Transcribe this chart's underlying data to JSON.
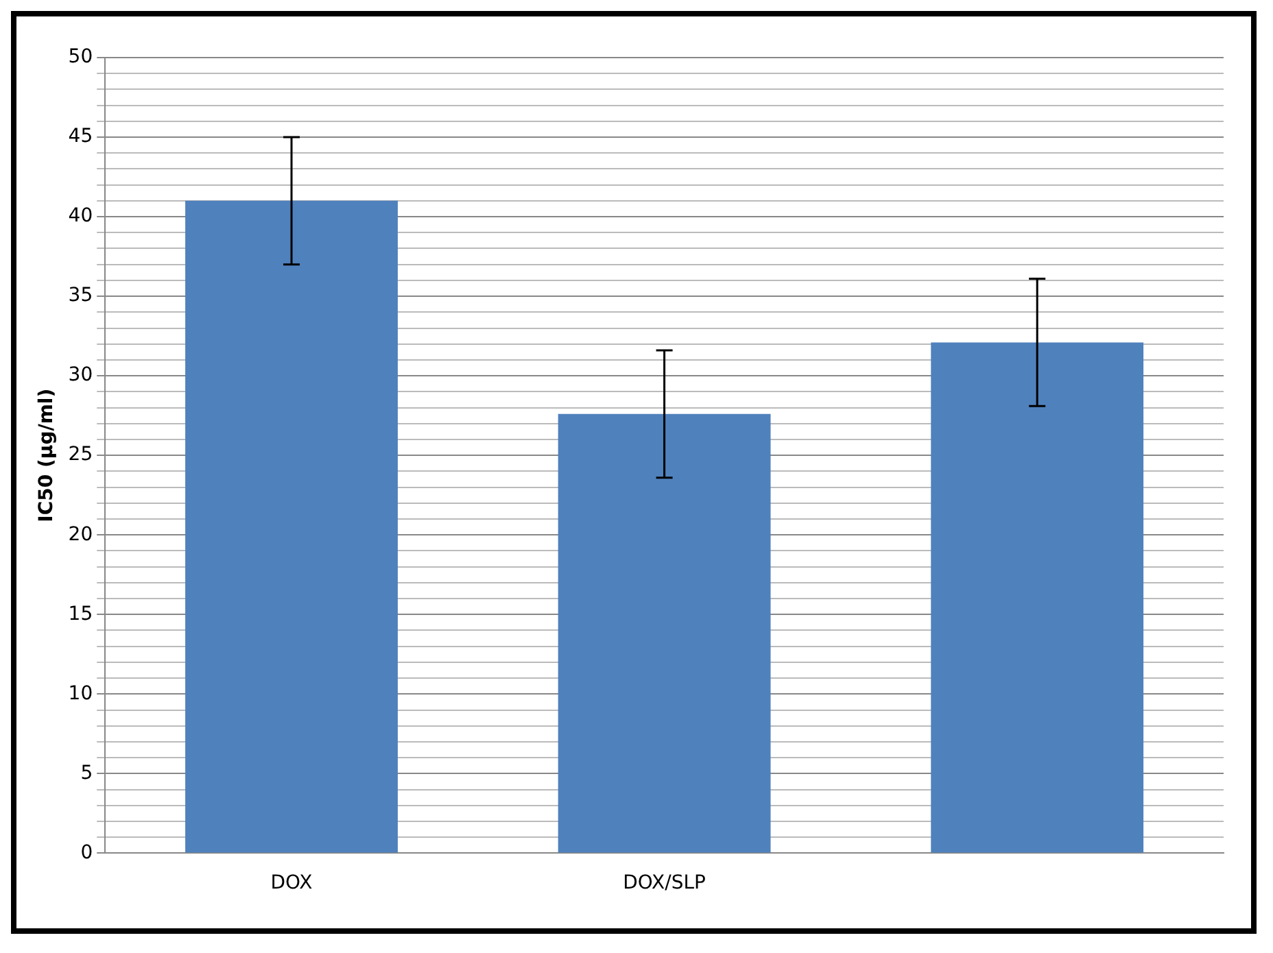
{
  "chart_data": {
    "type": "bar",
    "ylabel": "IC50 (µg/ml)",
    "categories": [
      "DOX",
      "DOX/SLP",
      null
    ],
    "values": [
      41,
      27.6,
      32.1
    ],
    "errors": [
      4,
      4,
      4
    ],
    "color": "#4f81bd",
    "ylim": [
      0,
      50
    ],
    "yticks": [
      0,
      {
        "value": 1,
        "label": null
      },
      {
        "value": 2,
        "label": null
      },
      {
        "value": 3,
        "label": null
      },
      {
        "value": 4,
        "label": null
      },
      5,
      {
        "value": 6,
        "label": null
      },
      {
        "value": 7,
        "label": null
      },
      {
        "value": 8,
        "label": null
      },
      {
        "value": 9,
        "label": null
      },
      10,
      {
        "value": 11,
        "label": null
      },
      {
        "value": 12,
        "label": null
      },
      {
        "value": 13,
        "label": null
      },
      {
        "value": 14,
        "label": null
      },
      15,
      {
        "value": 16,
        "label": null
      },
      {
        "value": 17,
        "label": null
      },
      {
        "value": 18,
        "label": null
      },
      {
        "value": 19,
        "label": null
      },
      20,
      {
        "value": 21,
        "label": null
      },
      {
        "value": 22,
        "label": null
      },
      {
        "value": 23,
        "label": null
      },
      {
        "value": 24,
        "label": null
      },
      25,
      {
        "value": 26,
        "label": null
      },
      {
        "value": 27,
        "label": null
      },
      {
        "value": 28,
        "label": null
      },
      {
        "value": 29,
        "label": null
      },
      30,
      {
        "value": 31,
        "label": null
      },
      {
        "value": 32,
        "label": null
      },
      {
        "value": 33,
        "label": null
      },
      {
        "value": 34,
        "label": null
      },
      35,
      {
        "value": 36,
        "label": null
      },
      {
        "value": 37,
        "label": null
      },
      {
        "value": 38,
        "label": null
      },
      {
        "value": 39,
        "label": null
      },
      40,
      {
        "value": 41,
        "label": null
      },
      {
        "value": 42,
        "label": null
      },
      {
        "value": 43,
        "label": null
      },
      {
        "value": 44,
        "label": null
      },
      45,
      {
        "value": 46,
        "label": null
      },
      {
        "value": 47,
        "label": null
      },
      {
        "value": 48,
        "label": null
      },
      {
        "value": 49,
        "label": null
      },
      50
    ],
    "grid": "y",
    "legend": false
  }
}
